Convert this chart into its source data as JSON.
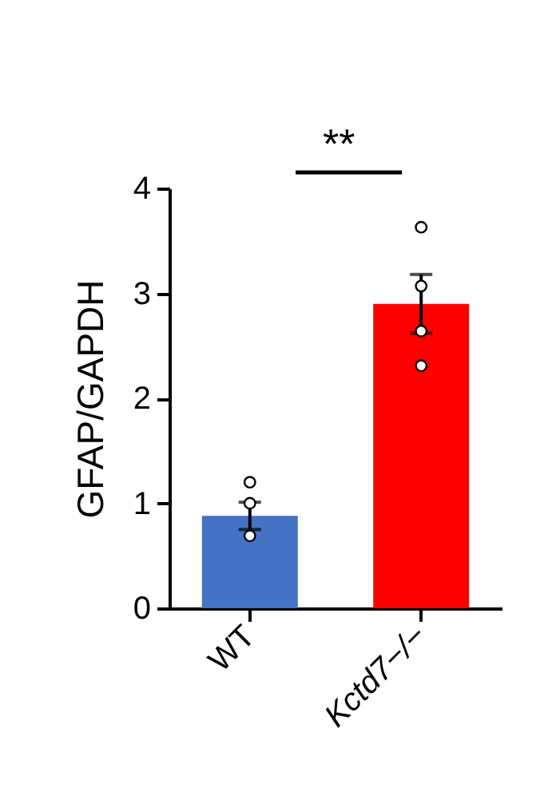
{
  "chart_data": {
    "type": "bar",
    "ylabel": "GFAP/GAPDH",
    "categories": [
      "WT",
      "Kctd7−/−"
    ],
    "series": [
      {
        "values": [
          0.88,
          2.9
        ],
        "colors": [
          "#4472c4",
          "#ff0000"
        ],
        "errors": [
          0.13,
          0.28
        ]
      },
      {
        "type": "scatter",
        "x": [
          "WT",
          "WT",
          "WT",
          "Kctd7−/−",
          "Kctd7−/−",
          "Kctd7−/−",
          "Kctd7−/−"
        ],
        "values": [
          1.2,
          1.0,
          0.69,
          3.63,
          3.07,
          2.64,
          2.31
        ],
        "color": "#ffffff"
      }
    ],
    "ylim": [
      0,
      4
    ],
    "yticks": [
      0,
      1,
      2,
      3,
      4
    ],
    "annotations": [
      "**"
    ],
    "grid": false,
    "legend": false
  }
}
